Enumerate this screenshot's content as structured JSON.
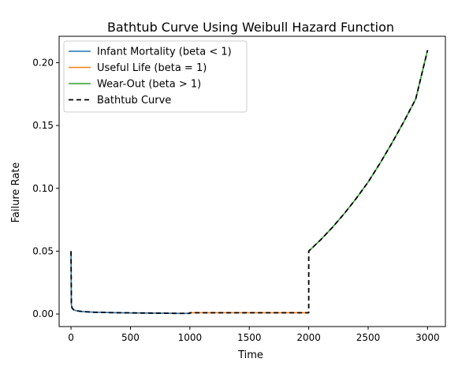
{
  "chart_data": {
    "type": "line",
    "title": "Bathtub Curve Using Weibull Hazard Function",
    "xlabel": "Time",
    "ylabel": "Failure Rate",
    "xlim": [
      -100,
      3150
    ],
    "ylim": [
      -0.01,
      0.221
    ],
    "xticks": [
      0,
      500,
      1000,
      1500,
      2000,
      2500,
      3000
    ],
    "xtick_labels": [
      "0",
      "500",
      "1000",
      "1500",
      "2000",
      "2500",
      "3000"
    ],
    "yticks": [
      0.0,
      0.05,
      0.1,
      0.15,
      0.2
    ],
    "ytick_labels": [
      "0.00",
      "0.05",
      "0.10",
      "0.15",
      "0.20"
    ],
    "grid": false,
    "legend_position": "top-left",
    "series": [
      {
        "name": "Infant Mortality (beta < 1)",
        "color": "#1f77b4",
        "style": "solid",
        "x": [
          0,
          3,
          10,
          25,
          50,
          100,
          200,
          300,
          400,
          500,
          600,
          700,
          800,
          900,
          1000
        ],
        "y": [
          0.05,
          0.0072,
          0.0045,
          0.0032,
          0.0025,
          0.0019,
          0.0014,
          0.0012,
          0.001,
          0.0009,
          0.0008,
          0.0007,
          0.0006,
          0.0005,
          0.0005
        ]
      },
      {
        "name": "Useful Life (beta = 1)",
        "color": "#ff7f0e",
        "style": "solid",
        "x": [
          1000,
          2000
        ],
        "y": [
          0.001,
          0.001
        ]
      },
      {
        "name": "Wear-Out (beta > 1)",
        "color": "#2ca02c",
        "style": "solid",
        "x": [
          2000,
          2100,
          2200,
          2300,
          2400,
          2500,
          2600,
          2700,
          2800,
          2900,
          3000
        ],
        "y": [
          0.05,
          0.059,
          0.069,
          0.08,
          0.092,
          0.105,
          0.12,
          0.136,
          0.153,
          0.171,
          0.21
        ]
      },
      {
        "name": "Bathtub Curve",
        "color": "#000000",
        "style": "dashed",
        "x": [
          0,
          3,
          10,
          25,
          50,
          100,
          200,
          300,
          400,
          500,
          600,
          700,
          800,
          900,
          1000,
          1000,
          2000,
          2000,
          2100,
          2200,
          2300,
          2400,
          2500,
          2600,
          2700,
          2800,
          2900,
          3000
        ],
        "y": [
          0.05,
          0.0072,
          0.0045,
          0.0032,
          0.0025,
          0.0019,
          0.0014,
          0.0012,
          0.001,
          0.0009,
          0.0008,
          0.0007,
          0.0006,
          0.0005,
          0.0005,
          0.001,
          0.001,
          0.05,
          0.059,
          0.069,
          0.08,
          0.092,
          0.105,
          0.12,
          0.136,
          0.153,
          0.171,
          0.21
        ]
      }
    ]
  }
}
